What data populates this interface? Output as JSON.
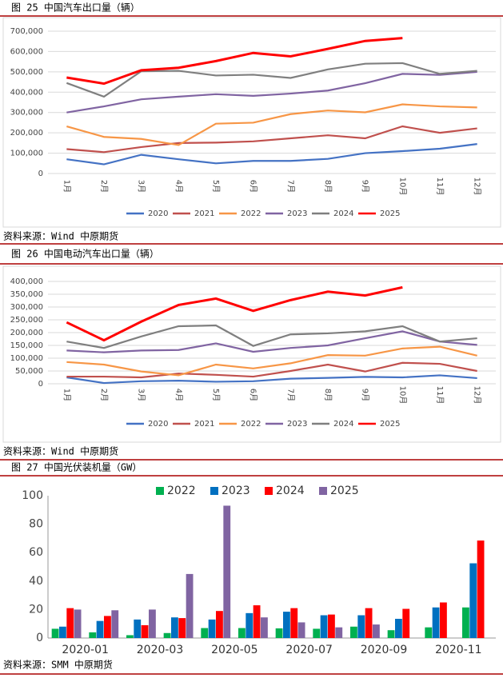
{
  "chart_data": [
    {
      "type": "line",
      "title": "图 25 中国汽车出口量（辆）",
      "source": "资料来源：Wind 中原期货",
      "categories": [
        "1月",
        "2月",
        "3月",
        "4月",
        "5月",
        "6月",
        "7月",
        "8月",
        "9月",
        "10月",
        "11月",
        "12月"
      ],
      "ylim": [
        0,
        700000
      ],
      "yticks": [
        0,
        {
          "value": 100000,
          "label": "100,000"
        },
        {
          "value": 200000,
          "label": "200,000"
        },
        {
          "value": 300000,
          "label": "300,000"
        },
        {
          "value": 400000,
          "label": "400,000"
        },
        {
          "value": 500000,
          "label": "500,000"
        },
        {
          "value": 600000,
          "label": "600,000"
        },
        {
          "value": 700000,
          "label": "700,000"
        }
      ],
      "grid": true,
      "legend": "bottom",
      "series": [
        {
          "name": "2020",
          "color": "#4472c4",
          "values": [
            70000,
            45000,
            92000,
            70000,
            50000,
            62000,
            62000,
            72000,
            100000,
            110000,
            122000,
            145000
          ]
        },
        {
          "name": "2021",
          "color": "#c0504d",
          "values": [
            120000,
            105000,
            130000,
            150000,
            152000,
            158000,
            173000,
            188000,
            173000,
            232000,
            200000,
            222000
          ]
        },
        {
          "name": "2022",
          "color": "#f79646",
          "values": [
            232000,
            180000,
            170000,
            140000,
            245000,
            250000,
            292000,
            310000,
            301000,
            340000,
            330000,
            325000
          ]
        },
        {
          "name": "2023",
          "color": "#8064a2",
          "values": [
            300000,
            330000,
            365000,
            378000,
            390000,
            382000,
            393000,
            408000,
            444000,
            490000,
            485000,
            500000
          ]
        },
        {
          "name": "2024",
          "color": "#7f7f7f",
          "values": [
            445000,
            378000,
            503000,
            505000,
            482000,
            486000,
            470000,
            512000,
            540000,
            543000,
            490000,
            505000
          ]
        },
        {
          "name": "2025",
          "color": "#ff0000",
          "values": [
            472000,
            442000,
            508000,
            520000,
            553000,
            593000,
            576000,
            613000,
            652000,
            666000,
            null,
            null
          ]
        }
      ]
    },
    {
      "type": "line",
      "title": "图 26 中国电动汽车出口量（辆）",
      "source": "资料来源：Wind 中原期货",
      "categories": [
        "1月",
        "2月",
        "3月",
        "4月",
        "5月",
        "6月",
        "7月",
        "8月",
        "9月",
        "10月",
        "11月",
        "12月"
      ],
      "ylim": [
        0,
        400000
      ],
      "yticks": [
        0,
        {
          "value": 50000,
          "label": "50,000"
        },
        {
          "value": 100000,
          "label": "100,000"
        },
        {
          "value": 150000,
          "label": "150,000"
        },
        {
          "value": 200000,
          "label": "200,000"
        },
        {
          "value": 250000,
          "label": "250,000"
        },
        {
          "value": 300000,
          "label": "300,000"
        },
        {
          "value": 350000,
          "label": "350,000"
        },
        {
          "value": 400000,
          "label": "400,000"
        }
      ],
      "grid": true,
      "legend": "bottom",
      "series": [
        {
          "name": "2020",
          "color": "#4472c4",
          "values": [
            25000,
            3000,
            10000,
            12000,
            8000,
            10000,
            20000,
            23000,
            27000,
            25000,
            33000,
            22000
          ]
        },
        {
          "name": "2021",
          "color": "#c0504d",
          "values": [
            28000,
            28000,
            25000,
            40000,
            35000,
            28000,
            50000,
            75000,
            48000,
            82000,
            78000,
            50000
          ]
        },
        {
          "name": "2022",
          "color": "#f79646",
          "values": [
            85000,
            75000,
            48000,
            33000,
            75000,
            60000,
            80000,
            112000,
            110000,
            138000,
            145000,
            110000
          ]
        },
        {
          "name": "2023",
          "color": "#8064a2",
          "values": [
            130000,
            123000,
            130000,
            132000,
            158000,
            125000,
            140000,
            150000,
            178000,
            205000,
            165000,
            152000
          ]
        },
        {
          "name": "2024",
          "color": "#7f7f7f",
          "values": [
            165000,
            140000,
            185000,
            225000,
            228000,
            148000,
            193000,
            197000,
            205000,
            225000,
            165000,
            178000
          ]
        },
        {
          "name": "2025",
          "color": "#ff0000",
          "values": [
            240000,
            170000,
            243000,
            308000,
            333000,
            285000,
            327000,
            360000,
            345000,
            377000,
            null,
            null
          ]
        }
      ]
    },
    {
      "type": "bar",
      "title": "图 27 中国光伏装机量（GW）",
      "source": "资料来源：SMM 中原期货",
      "categories": [
        "2020-01",
        null,
        "2020-03",
        null,
        "2020-05",
        null,
        "2020-07",
        null,
        "2020-09",
        null,
        "2020-11",
        null
      ],
      "ylim": [
        0,
        100
      ],
      "yticks": [
        0,
        20,
        40,
        60,
        80,
        100
      ],
      "grid": false,
      "legend": "top",
      "series": [
        {
          "name": "2022",
          "color": "#00b050",
          "values": [
            6.5,
            4,
            2,
            3.5,
            7,
            7,
            6.8,
            6.5,
            8,
            5.5,
            7.5,
            21.5
          ]
        },
        {
          "name": "2023",
          "color": "#0070c0",
          "values": [
            8,
            12,
            13,
            14.5,
            13,
            17.5,
            18.5,
            16,
            16,
            13.5,
            21.5,
            52.5
          ]
        },
        {
          "name": "2024",
          "color": "#ff0000",
          "values": [
            21,
            15.5,
            9,
            14,
            19,
            23,
            21,
            16.5,
            21,
            20.5,
            25,
            68.5
          ]
        },
        {
          "name": "2025",
          "color": "#8064a2",
          "values": [
            20,
            19.5,
            20,
            45,
            93,
            14.5,
            11,
            7.5,
            9.5,
            null,
            null,
            null
          ]
        }
      ]
    }
  ]
}
